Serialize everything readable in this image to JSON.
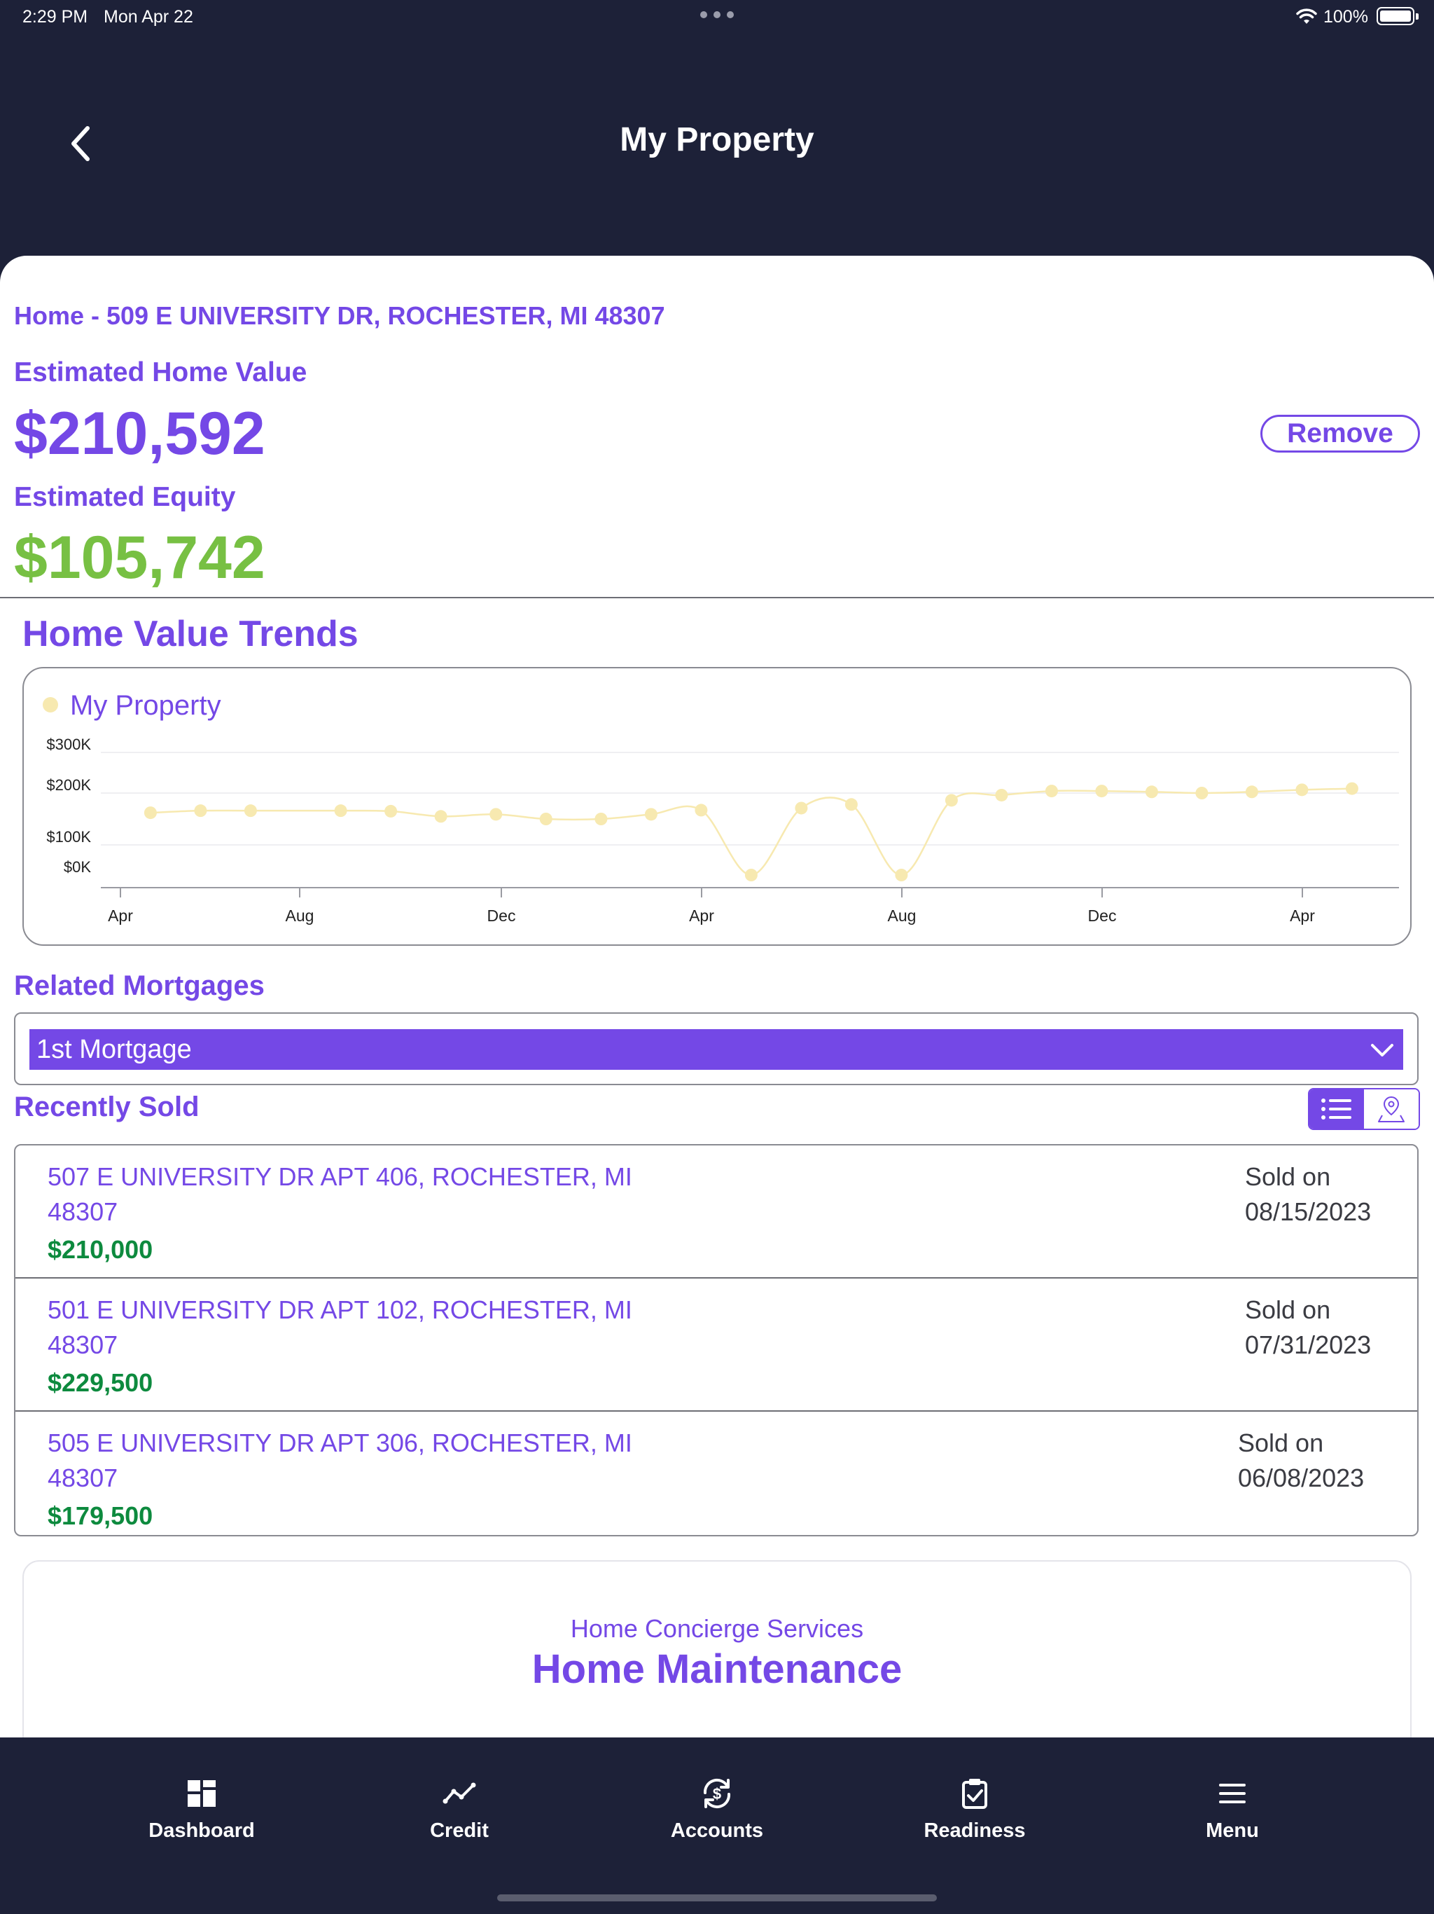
{
  "status_bar": {
    "time": "2:29 PM",
    "date": "Mon Apr 22",
    "battery": "100%"
  },
  "header": {
    "title": "My Property"
  },
  "property": {
    "address": "Home - 509 E UNIVERSITY DR, ROCHESTER, MI 48307",
    "home_value_label": "Estimated Home Value",
    "home_value": "$210,592",
    "equity_label": "Estimated Equity",
    "equity": "$105,742",
    "remove_label": "Remove"
  },
  "trends": {
    "title": "Home Value Trends"
  },
  "chart_data": {
    "type": "line",
    "title": "",
    "legend": [
      "My Property"
    ],
    "legend_position": "top-left",
    "xlabel": "",
    "ylabel": "",
    "yticks": [
      "$0K",
      "$100K",
      "$200K",
      "$300K"
    ],
    "xticks": [
      "Apr",
      "Aug",
      "Dec",
      "Apr",
      "Aug",
      "Dec",
      "Apr"
    ],
    "ylim": [
      0,
      300000
    ],
    "grid": true,
    "color": "#f7e9b0",
    "series": [
      {
        "name": "My Property",
        "x": [
          0.6,
          1.6,
          2.6,
          4.4,
          5.4,
          6.4,
          7.5,
          8.5,
          9.6,
          10.6,
          11.6,
          12.6,
          13.6,
          14.6,
          15.6,
          16.6,
          17.6,
          18.6,
          19.6,
          20.6,
          21.6,
          22.6,
          23.6,
          24.6
        ],
        "values": [
          162000,
          166000,
          166000,
          166000,
          165000,
          155000,
          159000,
          150000,
          150000,
          159000,
          167000,
          0,
          171000,
          178000,
          0,
          186000,
          196000,
          205000,
          205000,
          203000,
          200000,
          203000,
          208000,
          211000
        ]
      }
    ]
  },
  "mortgages": {
    "title": "Related Mortgages",
    "selected": "1st Mortgage"
  },
  "recently_sold": {
    "title": "Recently Sold",
    "items": [
      {
        "address": "507 E UNIVERSITY DR APT 406, ROCHESTER, MI 48307",
        "price": "$210,000",
        "sold_on": "Sold on 08/15/2023"
      },
      {
        "address": "501 E UNIVERSITY DR APT 102, ROCHESTER, MI 48307",
        "price": "$229,500",
        "sold_on": "Sold on 07/31/2023"
      },
      {
        "address": "505 E UNIVERSITY DR APT 306, ROCHESTER, MI 48307",
        "price": "$179,500",
        "sold_on": "Sold on 06/08/2023"
      }
    ]
  },
  "concierge": {
    "subtitle": "Home Concierge Services",
    "title": "Home Maintenance"
  },
  "tab_bar": {
    "items": [
      {
        "label": "Dashboard",
        "icon": "dashboard-icon"
      },
      {
        "label": "Credit",
        "icon": "credit-icon"
      },
      {
        "label": "Accounts",
        "icon": "accounts-icon"
      },
      {
        "label": "Readiness",
        "icon": "readiness-icon"
      },
      {
        "label": "Menu",
        "icon": "menu-icon"
      }
    ]
  }
}
